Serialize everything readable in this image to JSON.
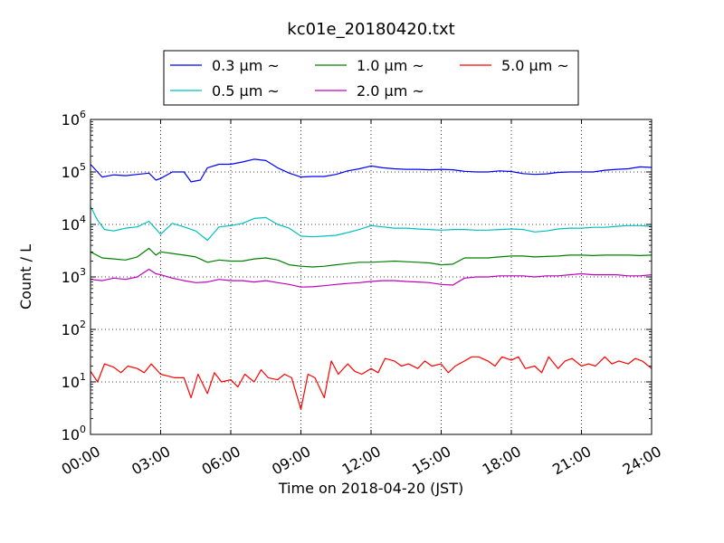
{
  "chart_data": {
    "type": "line",
    "title": "kc01e_20180420.txt",
    "xlabel": "Time on 2018-04-20 (JST)",
    "ylabel": "Count / L",
    "x_unit": "hours",
    "xlim": [
      0,
      24
    ],
    "ylim": [
      1,
      1000000
    ],
    "y_scale": "log",
    "grid": true,
    "legend_position": "top-center",
    "x_ticks": [
      {
        "value": 0,
        "label": "00:00"
      },
      {
        "value": 3,
        "label": "03:00"
      },
      {
        "value": 6,
        "label": "06:00"
      },
      {
        "value": 9,
        "label": "09:00"
      },
      {
        "value": 12,
        "label": "12:00"
      },
      {
        "value": 15,
        "label": "15:00"
      },
      {
        "value": 18,
        "label": "18:00"
      },
      {
        "value": 21,
        "label": "21:00"
      },
      {
        "value": 24,
        "label": "24:00"
      }
    ],
    "y_ticks": [
      {
        "value": 1,
        "base": "10",
        "exp": "0"
      },
      {
        "value": 10,
        "base": "10",
        "exp": "1"
      },
      {
        "value": 100,
        "base": "10",
        "exp": "2"
      },
      {
        "value": 1000,
        "base": "10",
        "exp": "3"
      },
      {
        "value": 10000,
        "base": "10",
        "exp": "4"
      },
      {
        "value": 100000,
        "base": "10",
        "exp": "5"
      },
      {
        "value": 1000000,
        "base": "10",
        "exp": "6"
      }
    ],
    "series": [
      {
        "name": "0.3 μm ~",
        "color": "#0000ff",
        "x": [
          0,
          0.5,
          1,
          1.5,
          2,
          2.5,
          2.8,
          3,
          3.5,
          4,
          4.3,
          4.7,
          5,
          5.5,
          6,
          6.5,
          7,
          7.5,
          8,
          8.5,
          9,
          9.5,
          10,
          10.5,
          11,
          11.5,
          12,
          12.5,
          13,
          13.5,
          14,
          14.5,
          15,
          15.5,
          16,
          16.5,
          17,
          17.5,
          18,
          18.5,
          19,
          19.5,
          20,
          20.5,
          21,
          21.5,
          22,
          22.5,
          23,
          23.5,
          24
        ],
        "values": [
          140000,
          80000,
          88000,
          85000,
          90000,
          95000,
          70000,
          75000,
          100000,
          100000,
          65000,
          70000,
          120000,
          140000,
          140000,
          155000,
          175000,
          165000,
          120000,
          95000,
          80000,
          82000,
          82000,
          90000,
          105000,
          115000,
          130000,
          120000,
          115000,
          112000,
          112000,
          110000,
          112000,
          110000,
          103000,
          100000,
          100000,
          105000,
          102000,
          93000,
          90000,
          92000,
          98000,
          100000,
          100000,
          100000,
          108000,
          112000,
          115000,
          125000,
          122000
        ]
      },
      {
        "name": "0.5 μm ~",
        "color": "#00bfbf",
        "x": [
          0,
          0.3,
          0.6,
          1,
          1.5,
          2,
          2.5,
          3,
          3.5,
          4,
          4.5,
          5,
          5.5,
          6,
          6.5,
          7,
          7.5,
          8,
          8.5,
          9,
          9.5,
          10,
          10.5,
          11,
          11.5,
          12,
          12.5,
          13,
          13.5,
          14,
          14.5,
          15,
          15.5,
          16,
          16.5,
          17,
          17.5,
          18,
          18.5,
          19,
          19.5,
          20,
          20.5,
          21,
          21.5,
          22,
          22.5,
          23,
          23.5,
          24
        ],
        "values": [
          22000,
          12000,
          8000,
          7500,
          8500,
          9000,
          11500,
          6500,
          10500,
          9000,
          7500,
          5000,
          9000,
          9500,
          10500,
          13000,
          13500,
          10000,
          8500,
          6000,
          5800,
          6000,
          6200,
          7000,
          8000,
          9500,
          9000,
          8500,
          8500,
          8200,
          8000,
          7800,
          8000,
          8000,
          7800,
          7800,
          8000,
          8200,
          8000,
          7200,
          7500,
          8200,
          8500,
          8500,
          8800,
          8800,
          9200,
          9500,
          9500,
          9200
        ]
      },
      {
        "name": "1.0 μm ~",
        "color": "#008000",
        "x": [
          0,
          0.5,
          1,
          1.5,
          2,
          2.5,
          2.8,
          3,
          3.5,
          4,
          4.5,
          5,
          5.5,
          6,
          6.5,
          7,
          7.5,
          8,
          8.5,
          9,
          9.5,
          10,
          10.5,
          11,
          11.5,
          12,
          12.5,
          13,
          13.5,
          14,
          14.5,
          15,
          15.5,
          16,
          16.5,
          17,
          17.5,
          18,
          18.5,
          19,
          19.5,
          20,
          20.5,
          21,
          21.5,
          22,
          22.5,
          23,
          23.5,
          24
        ],
        "values": [
          3000,
          2300,
          2200,
          2100,
          2400,
          3500,
          2600,
          3000,
          2800,
          2600,
          2400,
          1900,
          2100,
          2000,
          2000,
          2200,
          2300,
          2100,
          1700,
          1600,
          1550,
          1600,
          1700,
          1800,
          1900,
          1900,
          1950,
          2000,
          1950,
          1900,
          1850,
          1700,
          1750,
          2300,
          2300,
          2300,
          2400,
          2500,
          2500,
          2400,
          2450,
          2500,
          2600,
          2600,
          2550,
          2600,
          2600,
          2600,
          2550,
          2600
        ]
      },
      {
        "name": "2.0 μm ~",
        "color": "#bf00bf",
        "x": [
          0,
          0.5,
          1,
          1.5,
          2,
          2.5,
          2.8,
          3,
          3.5,
          4,
          4.5,
          5,
          5.5,
          6,
          6.5,
          7,
          7.5,
          8,
          8.5,
          9,
          9.5,
          10,
          10.5,
          11,
          11.5,
          12,
          12.5,
          13,
          13.5,
          14,
          14.5,
          15,
          15.5,
          16,
          16.5,
          17,
          17.5,
          18,
          18.5,
          19,
          19.5,
          20,
          20.5,
          21,
          21.5,
          22,
          22.5,
          23,
          23.5,
          24
        ],
        "values": [
          900,
          850,
          950,
          900,
          1000,
          1400,
          1150,
          1100,
          950,
          850,
          780,
          800,
          900,
          850,
          850,
          800,
          850,
          780,
          720,
          640,
          650,
          680,
          720,
          750,
          780,
          820,
          850,
          850,
          820,
          800,
          780,
          720,
          700,
          950,
          1000,
          1000,
          1050,
          1050,
          1050,
          1000,
          1050,
          1050,
          1100,
          1150,
          1100,
          1100,
          1100,
          1050,
          1050,
          1100
        ]
      },
      {
        "name": "5.0 μm ~",
        "color": "#ff0000",
        "x": [
          0,
          0.3,
          0.6,
          1,
          1.3,
          1.6,
          2,
          2.3,
          2.6,
          3,
          3.3,
          3.6,
          4,
          4.3,
          4.6,
          5,
          5.3,
          5.6,
          6,
          6.3,
          6.6,
          7,
          7.3,
          7.6,
          8,
          8.3,
          8.6,
          9,
          9.3,
          9.6,
          10,
          10.3,
          10.6,
          11,
          11.3,
          11.6,
          12,
          12.3,
          12.6,
          13,
          13.3,
          13.6,
          14,
          14.3,
          14.6,
          15,
          15.3,
          15.6,
          16,
          16.3,
          16.6,
          17,
          17.3,
          17.6,
          18,
          18.3,
          18.6,
          19,
          19.3,
          19.6,
          20,
          20.3,
          20.6,
          21,
          21.3,
          21.6,
          22,
          22.3,
          22.6,
          23,
          23.3,
          23.6,
          24
        ],
        "values": [
          16,
          10,
          22,
          19,
          15,
          20,
          18,
          15,
          22,
          14,
          13,
          12,
          12,
          5,
          14,
          6,
          15,
          10,
          11,
          8,
          14,
          10,
          17,
          12,
          11,
          14,
          12,
          3,
          14,
          12,
          5,
          25,
          14,
          22,
          16,
          14,
          18,
          15,
          28,
          25,
          20,
          22,
          18,
          25,
          20,
          22,
          15,
          20,
          25,
          30,
          30,
          25,
          20,
          30,
          26,
          30,
          18,
          20,
          15,
          30,
          18,
          25,
          28,
          20,
          22,
          20,
          30,
          22,
          25,
          22,
          28,
          25,
          18
        ]
      }
    ]
  }
}
